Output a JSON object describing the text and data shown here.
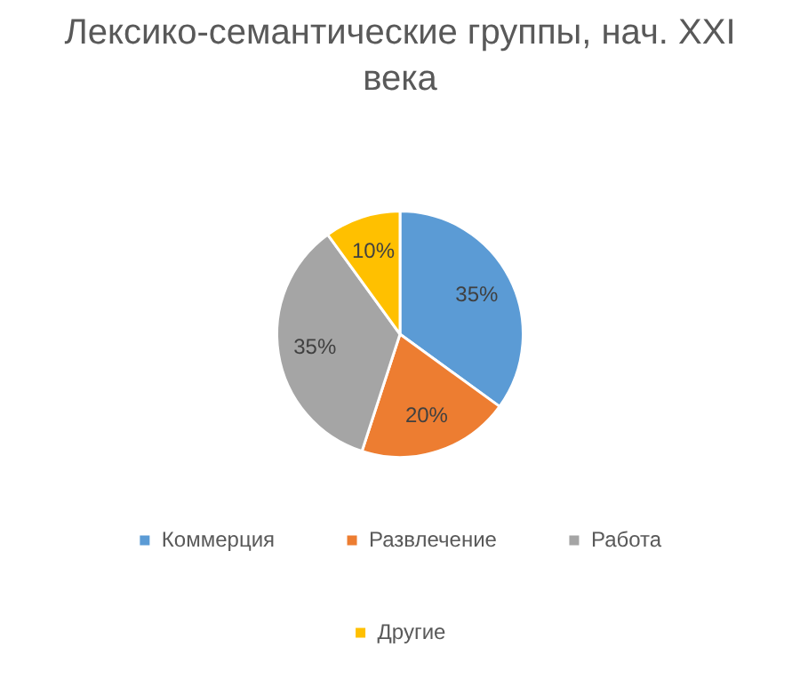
{
  "chart_data": {
    "type": "pie",
    "title": "Лексико-семантические группы, нач. XXI века",
    "categories": [
      "Коммерция",
      "Развлечение",
      "Работа",
      "Другие"
    ],
    "values": [
      35,
      20,
      35,
      10
    ],
    "value_labels": [
      "35%",
      "20%",
      "35%",
      "10%"
    ],
    "colors": [
      "#5b9bd5",
      "#ed7d31",
      "#a5a5a5",
      "#ffc000"
    ],
    "legend": "bottom"
  }
}
